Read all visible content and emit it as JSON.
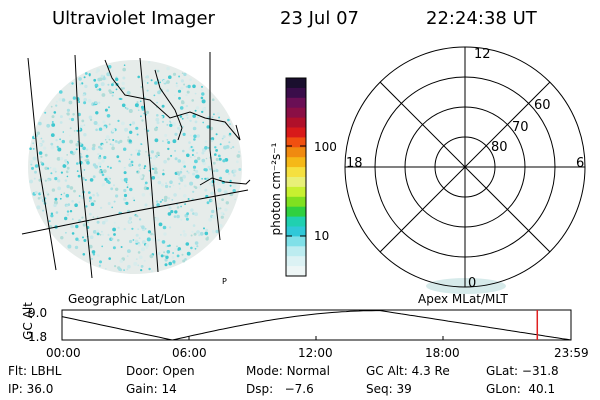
{
  "header": {
    "instrument": "Ultraviolet Imager",
    "date": "23 Jul 07",
    "time": "22:24:38 UT"
  },
  "colorbar": {
    "unit_label": "photon cm⁻²s⁻¹",
    "ticks": [
      "100",
      "10"
    ],
    "colors": [
      "#1a0f2e",
      "#3a0d4a",
      "#6a0f55",
      "#8a0f45",
      "#b0102a",
      "#d81a1a",
      "#f05010",
      "#f08a10",
      "#f5b818",
      "#f5e040",
      "#e8f078",
      "#c8f030",
      "#80e020",
      "#30d040",
      "#20d0b0",
      "#30c8d8",
      "#80e0e8",
      "#bcecf0",
      "#dcf2f4",
      "#eef6f6"
    ]
  },
  "left_panel": {
    "label": "Geographic Lat/Lon",
    "marker": "P"
  },
  "right_panel": {
    "label": "Apex MLat/MLT",
    "mlt_labels": {
      "top": "12",
      "left": "18",
      "right": "6",
      "bottom": "0"
    },
    "lat_labels": [
      "60",
      "70",
      "80"
    ]
  },
  "altitude_plot": {
    "ylabel": "GC Alt",
    "yticks": [
      "9.0",
      "1.8"
    ],
    "xticks": [
      "00:00",
      "06:00",
      "12:00",
      "18:00",
      "23:59"
    ],
    "marker_color": "#e02020",
    "marker_time_hours": 22.41
  },
  "status": {
    "row1": [
      {
        "key": "Flt:",
        "val": "LBHL"
      },
      {
        "key": "Door:",
        "val": "Open"
      },
      {
        "key": "Mode:",
        "val": "Normal"
      },
      {
        "key": "GC Alt:",
        "val": "4.3 Re"
      },
      {
        "key": "GLat:",
        "val": "−31.8"
      }
    ],
    "row2": [
      {
        "key": "IP:",
        "val": "36.0"
      },
      {
        "key": "Gain:",
        "val": "14"
      },
      {
        "key": "Dsp:",
        "val": "  −7.6"
      },
      {
        "key": "Seq:",
        "val": "39"
      },
      {
        "key": "GLon:",
        "val": " 40.1"
      }
    ]
  }
}
